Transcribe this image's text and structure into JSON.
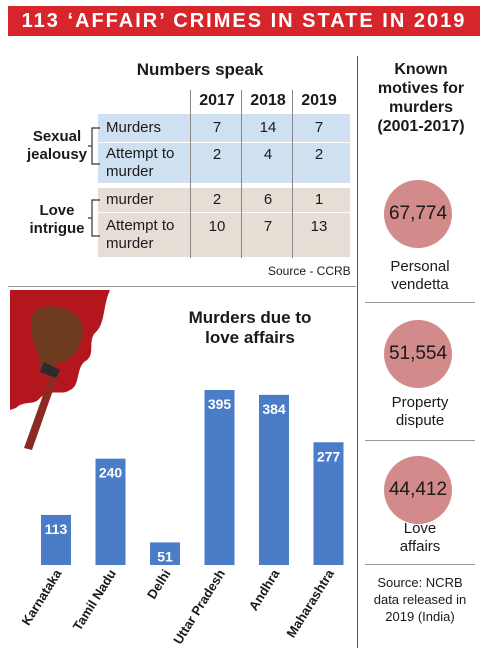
{
  "banner": "113 ‘AFFAIR’ CRIMES IN STATE IN 2019",
  "table": {
    "title": "Numbers speak",
    "years": [
      "2017",
      "2018",
      "2019"
    ],
    "groups": [
      {
        "label_line1": "Sexual",
        "label_line2": "jealousy",
        "rows": [
          {
            "label_line1": "Murders",
            "label_line2": "",
            "values": [
              "7",
              "14",
              "7"
            ]
          },
          {
            "label_line1": "Attempt to",
            "label_line2": "murder",
            "values": [
              "2",
              "4",
              "2"
            ]
          }
        ]
      },
      {
        "label_line1": "Love",
        "label_line2": "intrigue",
        "rows": [
          {
            "label_line1": "murder",
            "label_line2": "",
            "values": [
              "2",
              "6",
              "1"
            ]
          },
          {
            "label_line1": "Attempt to",
            "label_line2": "murder",
            "values": [
              "10",
              "7",
              "13"
            ]
          }
        ]
      }
    ],
    "source": "Source - CCRB"
  },
  "motives": {
    "title_line1": "Known",
    "title_line2": "motives for",
    "title_line3": "murders",
    "title_line4": "(2001-2017)",
    "items": [
      {
        "value": "67,774",
        "label_line1": "Personal",
        "label_line2": "vendetta"
      },
      {
        "value": "51,554",
        "label_line1": "Property",
        "label_line2": "dispute"
      },
      {
        "value": "44,412",
        "label_line1": "Love",
        "label_line2": "affairs"
      }
    ],
    "source_line1": "Source: NCRB",
    "source_line2": "data released in",
    "source_line3": "2019 (India)"
  },
  "chart_data": {
    "type": "bar",
    "title": "Murders due to love affairs",
    "title_line1": "Murders due to",
    "title_line2": "love affairs",
    "categories": [
      "Karnataka",
      "Tamil Nadu",
      "Delhi",
      "Uttar Pradesh",
      "Andhra",
      "Maharashtra"
    ],
    "values": [
      113,
      240,
      51,
      395,
      384,
      277
    ],
    "value_labels": [
      "113",
      "240",
      "51",
      "395",
      "384",
      "277"
    ],
    "bar_color": "#4a7cc7",
    "ylim": [
      0,
      395
    ],
    "grid": false,
    "legend": "none"
  },
  "colors": {
    "banner": "#d7262b",
    "row_blue": "#cfe1f0",
    "row_beige": "#e6ddd4",
    "circle": "#d28a8a",
    "blood": "#b3161c"
  }
}
